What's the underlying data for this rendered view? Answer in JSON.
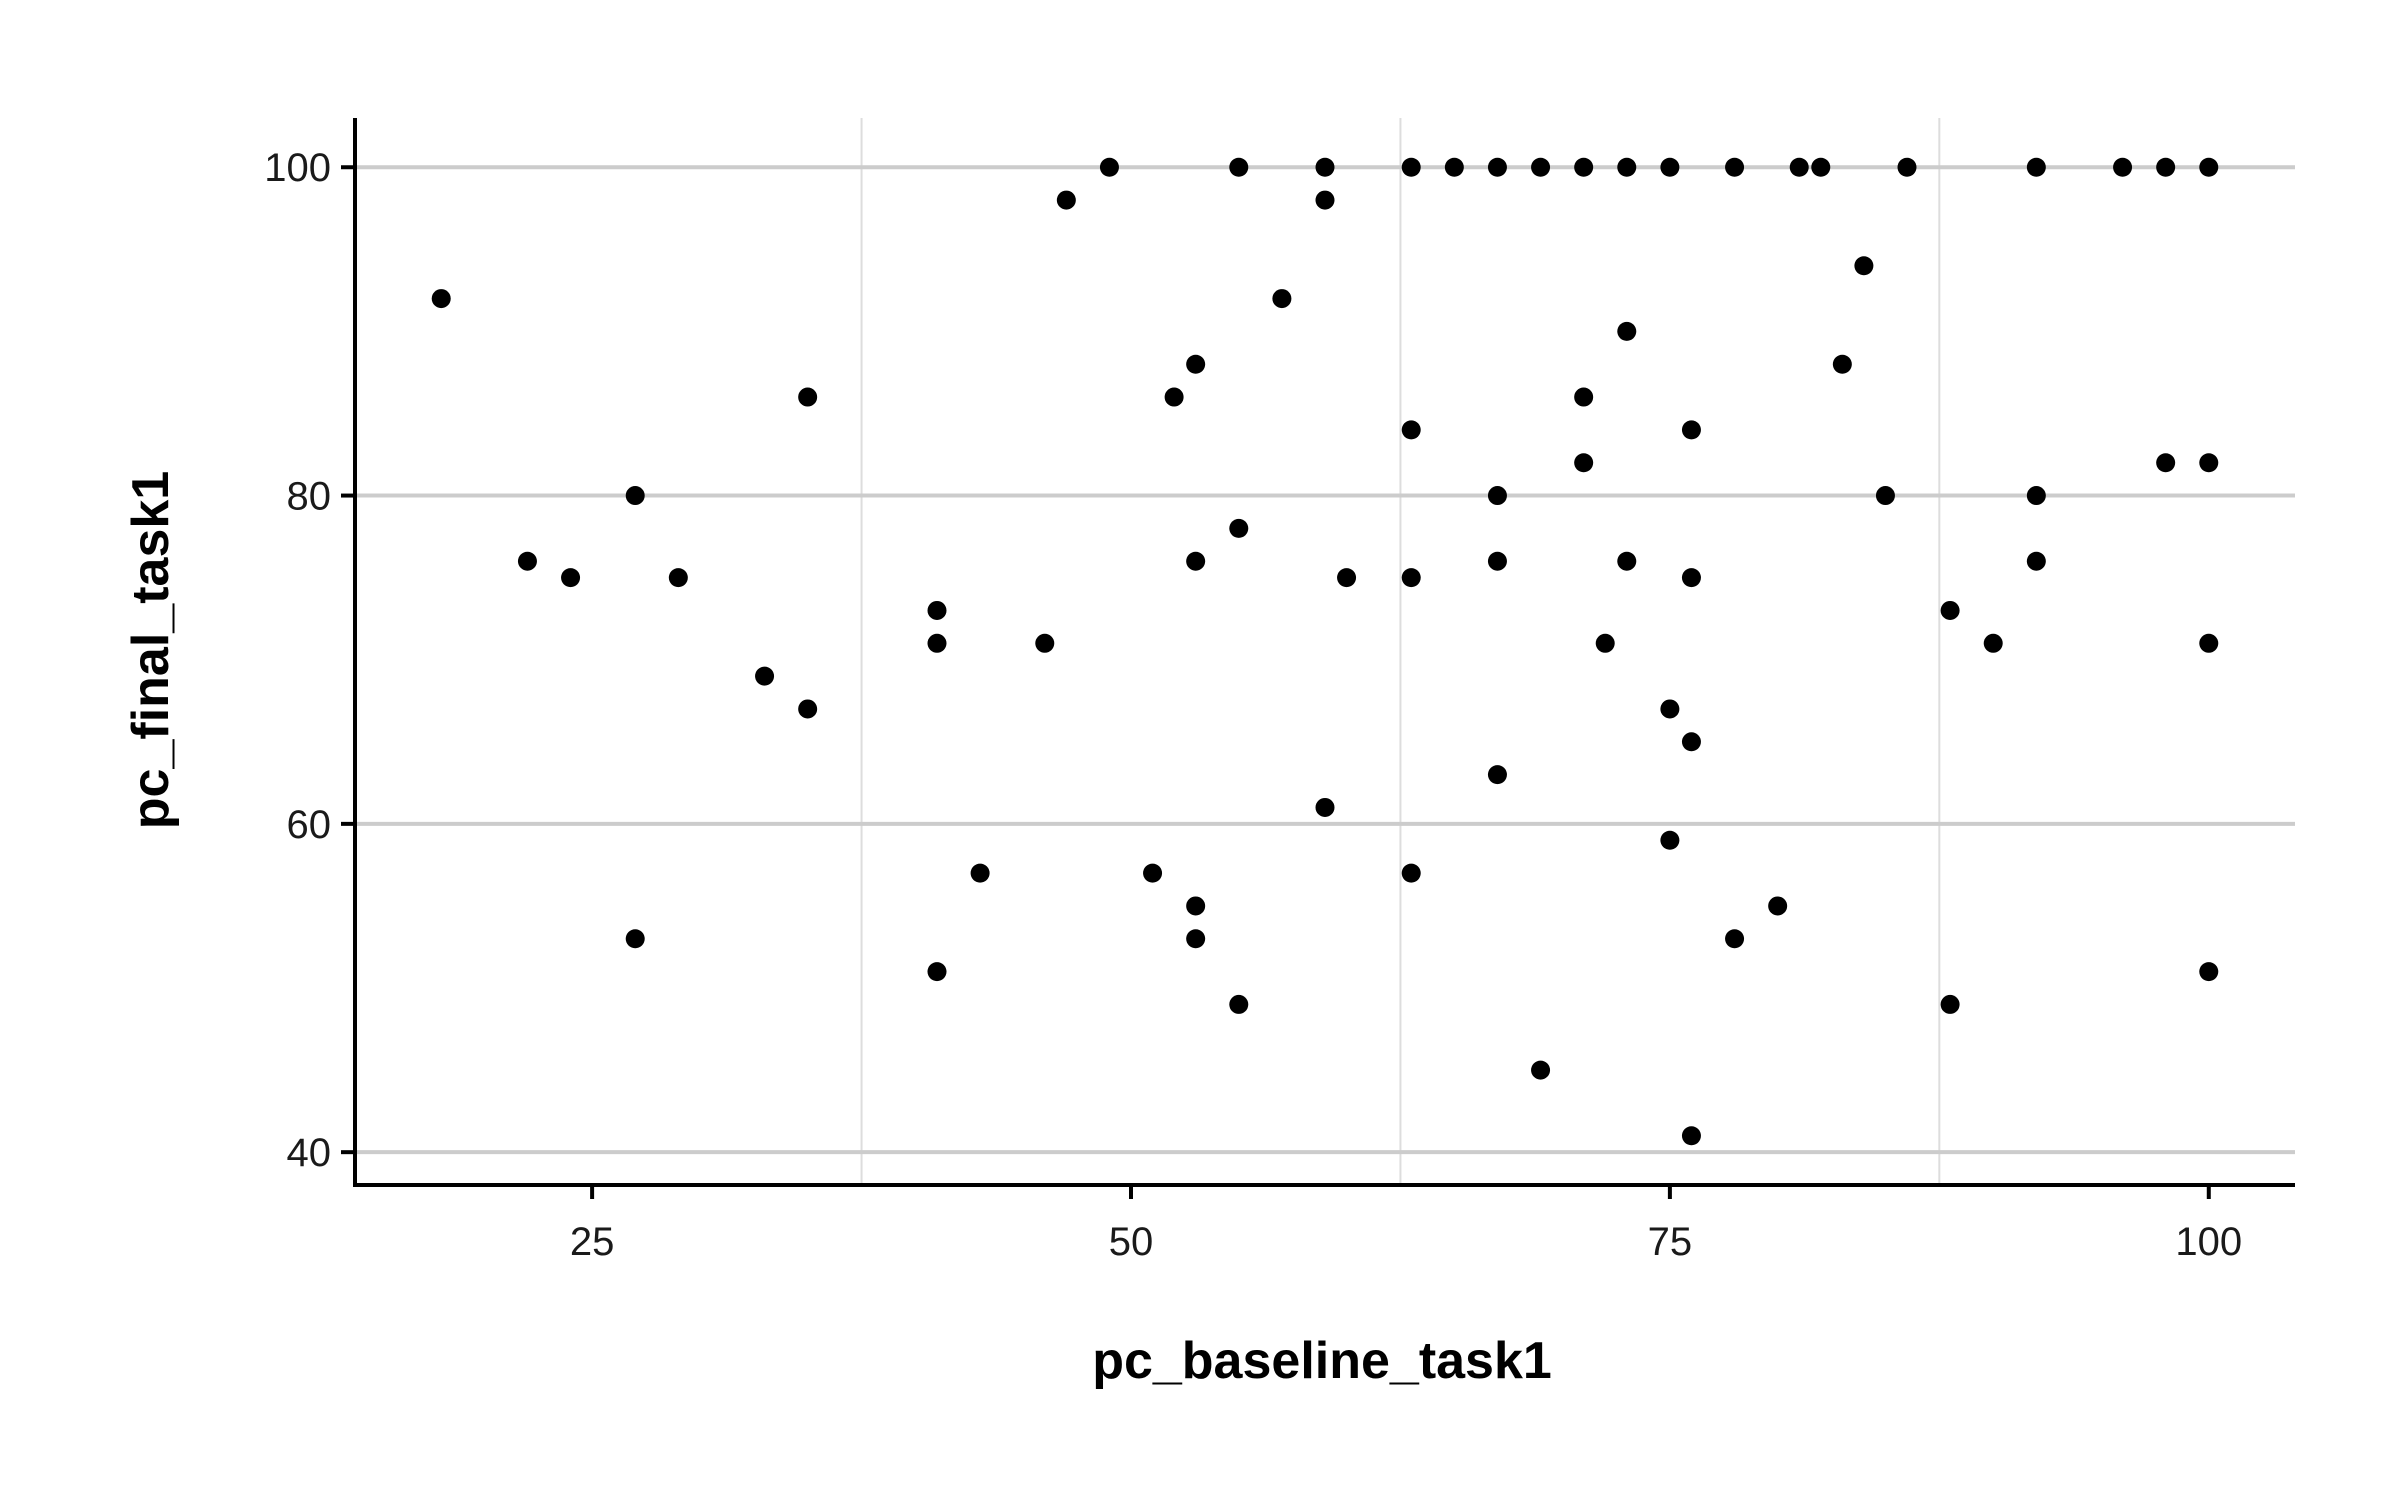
{
  "chart_data": {
    "type": "scatter",
    "title": "",
    "xlabel": "pc_baseline_task1",
    "ylabel": "pc_final_task1",
    "xlim": [
      14,
      104
    ],
    "ylim": [
      38,
      103
    ],
    "x_ticks": [
      25,
      50,
      75,
      100
    ],
    "y_ticks": [
      40,
      60,
      80,
      100
    ],
    "x_tick_labels": [
      "25",
      "50",
      "75",
      "100"
    ],
    "y_tick_labels": [
      "40",
      "60",
      "80",
      "100"
    ],
    "grid": true,
    "point_color": "#000000",
    "points": [
      [
        18,
        92
      ],
      [
        22,
        76
      ],
      [
        24,
        75
      ],
      [
        27,
        80
      ],
      [
        27,
        53
      ],
      [
        29,
        75
      ],
      [
        33,
        69
      ],
      [
        35,
        86
      ],
      [
        35,
        67
      ],
      [
        41,
        73
      ],
      [
        41,
        71
      ],
      [
        41,
        51
      ],
      [
        43,
        57
      ],
      [
        46,
        71
      ],
      [
        47,
        98
      ],
      [
        49,
        100
      ],
      [
        51,
        57
      ],
      [
        52,
        86
      ],
      [
        53,
        88
      ],
      [
        53,
        76
      ],
      [
        53,
        55
      ],
      [
        53,
        53
      ],
      [
        55,
        100
      ],
      [
        55,
        78
      ],
      [
        55,
        49
      ],
      [
        57,
        92
      ],
      [
        59,
        100
      ],
      [
        59,
        98
      ],
      [
        59,
        61
      ],
      [
        60,
        75
      ],
      [
        63,
        100
      ],
      [
        63,
        84
      ],
      [
        63,
        75
      ],
      [
        63,
        57
      ],
      [
        65,
        100
      ],
      [
        67,
        100
      ],
      [
        67,
        80
      ],
      [
        67,
        76
      ],
      [
        67,
        63
      ],
      [
        69,
        100
      ],
      [
        69,
        45
      ],
      [
        71,
        100
      ],
      [
        71,
        86
      ],
      [
        71,
        82
      ],
      [
        72,
        71
      ],
      [
        73,
        100
      ],
      [
        73,
        90
      ],
      [
        73,
        76
      ],
      [
        75,
        100
      ],
      [
        75,
        67
      ],
      [
        75,
        59
      ],
      [
        76,
        84
      ],
      [
        76,
        75
      ],
      [
        76,
        65
      ],
      [
        76,
        41
      ],
      [
        78,
        100
      ],
      [
        78,
        53
      ],
      [
        80,
        55
      ],
      [
        81,
        100
      ],
      [
        82,
        100
      ],
      [
        83,
        88
      ],
      [
        84,
        94
      ],
      [
        85,
        80
      ],
      [
        86,
        100
      ],
      [
        88,
        73
      ],
      [
        88,
        49
      ],
      [
        90,
        71
      ],
      [
        92,
        100
      ],
      [
        92,
        80
      ],
      [
        92,
        76
      ],
      [
        96,
        100
      ],
      [
        98,
        100
      ],
      [
        98,
        82
      ],
      [
        100,
        100
      ],
      [
        100,
        82
      ],
      [
        100,
        71
      ],
      [
        100,
        51
      ]
    ]
  }
}
